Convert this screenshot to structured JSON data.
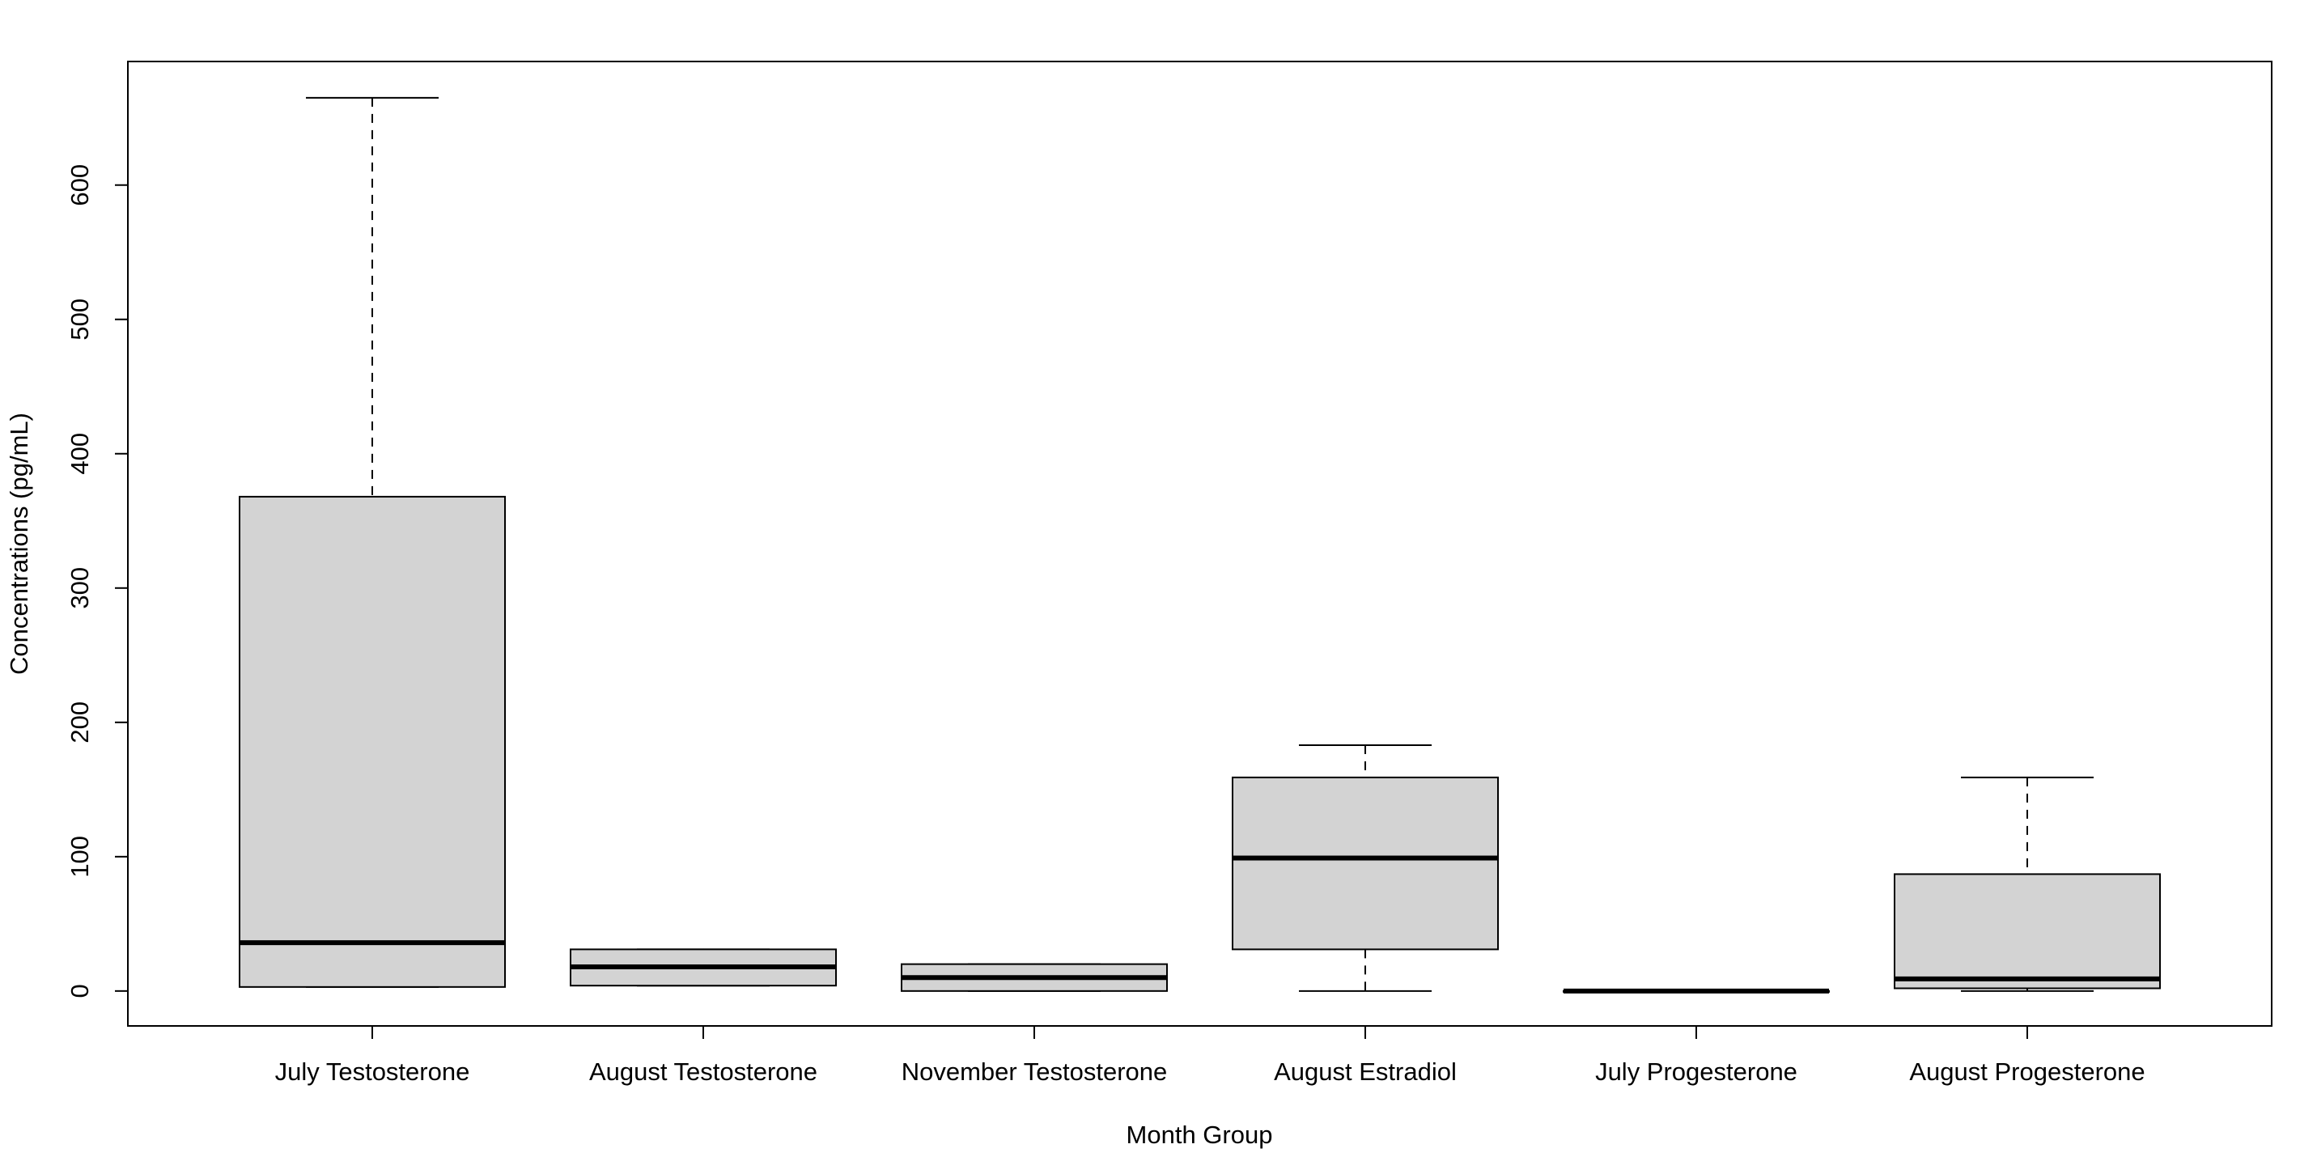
{
  "chart_data": {
    "type": "box",
    "title": "",
    "xlabel": "Month Group",
    "ylabel": "Concentrations (pg/mL)",
    "ylim": [
      -26,
      692
    ],
    "yticks": [
      0,
      100,
      200,
      300,
      400,
      500,
      600
    ],
    "grid": false,
    "legend": "none",
    "colors": {
      "box_fill": "#d3d3d3",
      "stroke": "#000000",
      "background": "#ffffff"
    },
    "categories": [
      "July Testosterone",
      "August Testosterone",
      "November Testosterone",
      "August Estradiol",
      "July Progesterone",
      "August Progesterone"
    ],
    "boxes": [
      {
        "min": 3,
        "q1": 3,
        "median": 36,
        "q3": 368,
        "max": 665
      },
      {
        "min": 4,
        "q1": 4,
        "median": 18,
        "q3": 31,
        "max": 31
      },
      {
        "min": 0,
        "q1": 0,
        "median": 10,
        "q3": 20,
        "max": 20
      },
      {
        "min": 0,
        "q1": 31,
        "median": 99,
        "q3": 159,
        "max": 183
      },
      {
        "min": 0,
        "q1": 0,
        "median": 0,
        "q3": 0,
        "max": 0
      },
      {
        "min": 0,
        "q1": 2,
        "median": 9,
        "q3": 87,
        "max": 159
      }
    ]
  }
}
